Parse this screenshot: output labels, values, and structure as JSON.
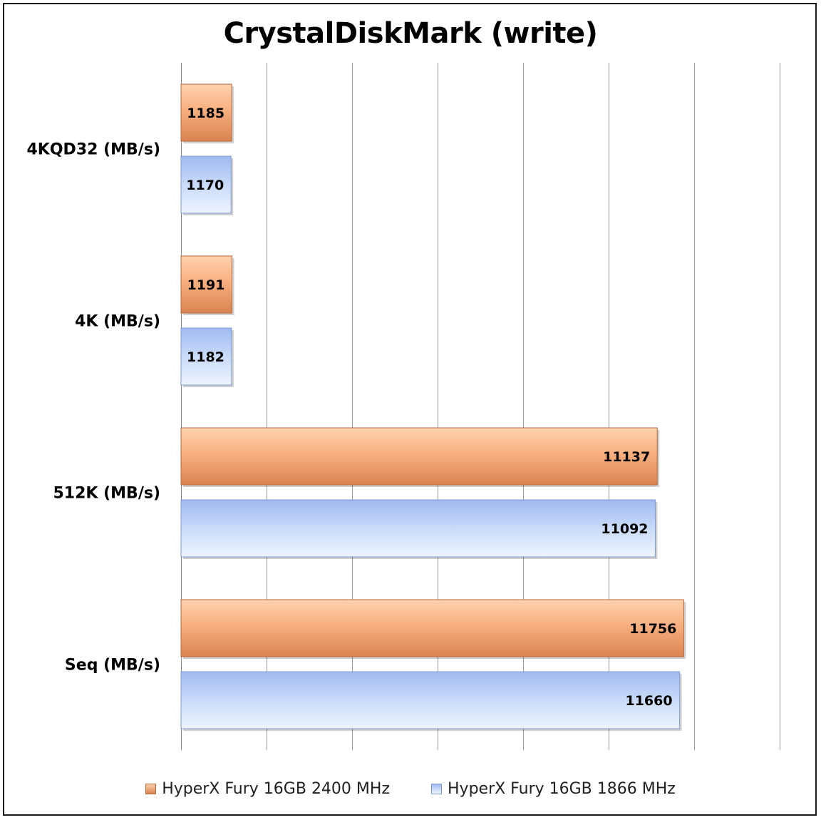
{
  "chart_data": {
    "type": "bar",
    "orientation": "horizontal",
    "title": "CrystalDiskMark (write)",
    "categories": [
      "4KQD32 (MB/s)",
      "4K (MB/s)",
      "512K (MB/s)",
      "Seq (MB/s)"
    ],
    "series": [
      {
        "name": "HyperX Fury 16GB 2400 MHz",
        "values": [
          1185,
          1191,
          11137,
          11756
        ],
        "color": "#f0a070"
      },
      {
        "name": "HyperX Fury 16GB 1866 MHz",
        "values": [
          1170,
          1182,
          11092,
          11660
        ],
        "color": "#b4cdf5"
      }
    ],
    "xlim": [
      0,
      14000
    ],
    "grid": true,
    "data_labels": true,
    "legend_position": "bottom"
  }
}
